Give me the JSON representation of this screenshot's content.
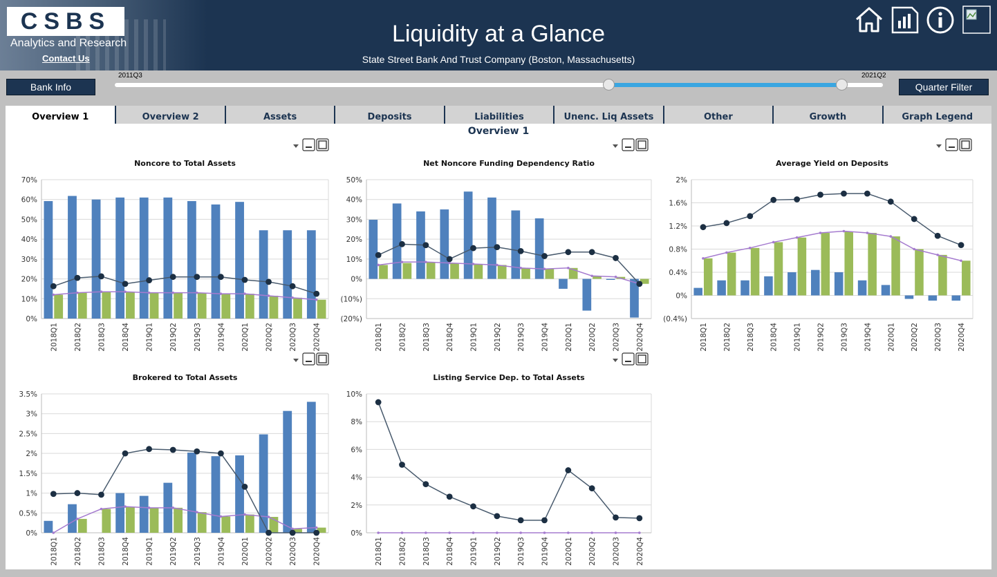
{
  "header": {
    "logo_text": "CSBS",
    "logo_sub": "Analytics and Research",
    "contact_link": "Contact Us",
    "title": "Liquidity at a Glance",
    "subtitle": "State Street Bank And Trust Company (Boston, Massachusetts)",
    "icons": [
      "home-icon",
      "report-icon",
      "info-icon",
      "broken-image-icon"
    ]
  },
  "controls": {
    "bank_info": "Bank Info",
    "quarter_filter": "Quarter Filter",
    "slider_min_label": "2011Q3",
    "slider_max_label": "2021Q2",
    "range_start_fraction": 0.643,
    "range_end_fraction": 0.946
  },
  "tabs": [
    "Overview 1",
    "Overview 2",
    "Assets",
    "Deposits",
    "Liabilities",
    "Unenc. Liq Assets",
    "Other",
    "Growth",
    "Graph Legend"
  ],
  "active_tab": 0,
  "panel_title": "Overview 1",
  "colors": {
    "bar_blue": "#4f81bd",
    "bar_green": "#9bbb59",
    "line_dark": "#1c2f43",
    "line_purple": "#a57bcf",
    "header_bg": "#1c3451",
    "slider_range": "#3aa6e1"
  },
  "chart_data": [
    {
      "type": "bar",
      "title": "Noncore to Total Assets",
      "categories": [
        "2018Q1",
        "2018Q2",
        "2018Q3",
        "2018Q4",
        "2019Q1",
        "2019Q2",
        "2019Q3",
        "2019Q4",
        "2020Q1",
        "2020Q2",
        "2020Q3",
        "2020Q4"
      ],
      "ylim": [
        0,
        70
      ],
      "ticks": [
        0,
        10,
        20,
        30,
        40,
        50,
        60,
        70
      ],
      "tick_labels": [
        "0%",
        "10%",
        "20%",
        "30%",
        "40%",
        "50%",
        "60%",
        "70%"
      ],
      "bars_blue": [
        59.2,
        61.8,
        60.0,
        61.0,
        61.0,
        61.0,
        59.2,
        57.5,
        58.8,
        44.5,
        44.5,
        44.5
      ],
      "bars_green": [
        12.0,
        13.0,
        13.5,
        13.5,
        13.0,
        13.0,
        13.0,
        12.5,
        12.5,
        11.5,
        10.5,
        9.5
      ],
      "line_dark": [
        16.3,
        20.5,
        21.3,
        17.5,
        19.3,
        21.0,
        21.0,
        21.0,
        19.5,
        18.5,
        16.3,
        12.5
      ],
      "line_purple": [
        12.0,
        13.0,
        13.5,
        13.5,
        13.0,
        13.0,
        13.0,
        12.5,
        12.5,
        11.5,
        10.5,
        9.5
      ]
    },
    {
      "type": "bar",
      "title": "Net Noncore Funding Dependency Ratio",
      "categories": [
        "2018Q1",
        "2018Q2",
        "2018Q3",
        "2018Q4",
        "2019Q1",
        "2019Q2",
        "2019Q3",
        "2019Q4",
        "2020Q1",
        "2020Q2",
        "2020Q3",
        "2020Q4"
      ],
      "ylim": [
        -20,
        50
      ],
      "ticks": [
        -20,
        -10,
        0,
        10,
        20,
        30,
        40,
        50
      ],
      "tick_labels": [
        "(20%)",
        "(10%)",
        "0%",
        "10%",
        "20%",
        "30%",
        "40%",
        "50%"
      ],
      "bars_blue": [
        29.8,
        38.0,
        34.0,
        35.0,
        44.0,
        41.0,
        34.5,
        30.5,
        -5.0,
        -16.0,
        -0.5,
        -19.5
      ],
      "bars_green": [
        7.0,
        8.0,
        8.5,
        8.0,
        7.5,
        7.0,
        5.5,
        5.0,
        5.5,
        1.5,
        1.0,
        -2.5
      ],
      "line_dark": [
        12.0,
        17.5,
        17.0,
        10.0,
        15.5,
        16.0,
        14.0,
        11.5,
        13.5,
        13.5,
        10.5,
        -2.5
      ],
      "line_purple": [
        7.0,
        8.5,
        8.5,
        8.0,
        7.5,
        7.0,
        5.5,
        5.0,
        5.5,
        1.5,
        1.0,
        -2.5
      ]
    },
    {
      "type": "bar",
      "title": "Average Yield on Deposits",
      "categories": [
        "2018Q1",
        "2018Q2",
        "2018Q3",
        "2018Q4",
        "2019Q1",
        "2019Q2",
        "2019Q3",
        "2019Q4",
        "2020Q1",
        "2020Q2",
        "2020Q3",
        "2020Q4"
      ],
      "ylim": [
        -0.4,
        2
      ],
      "ticks": [
        -0.4,
        0,
        0.4,
        0.8,
        1.2,
        1.6,
        2
      ],
      "tick_labels": [
        "(0.4%)",
        "0%",
        "0.4%",
        "0.8%",
        "1.2%",
        "1.6%",
        "2%"
      ],
      "bars_blue": [
        0.13,
        0.26,
        0.26,
        0.33,
        0.4,
        0.44,
        0.4,
        0.26,
        0.18,
        -0.06,
        -0.09,
        -0.09
      ],
      "bars_green": [
        0.64,
        0.74,
        0.82,
        0.92,
        1.0,
        1.08,
        1.1,
        1.08,
        1.02,
        0.8,
        0.7,
        0.6
      ],
      "line_dark": [
        1.18,
        1.25,
        1.37,
        1.65,
        1.66,
        1.74,
        1.76,
        1.76,
        1.62,
        1.32,
        1.03,
        0.87
      ],
      "line_purple": [
        0.64,
        0.74,
        0.82,
        0.92,
        1.0,
        1.08,
        1.11,
        1.08,
        1.02,
        0.8,
        0.7,
        0.6
      ]
    },
    {
      "type": "bar",
      "title": "Brokered to Total Assets",
      "categories": [
        "2018Q1",
        "2018Q2",
        "2018Q3",
        "2018Q4",
        "2019Q1",
        "2019Q2",
        "2019Q3",
        "2019Q4",
        "2020Q1",
        "2020Q2",
        "2020Q3",
        "2020Q4"
      ],
      "ylim": [
        0,
        3.5
      ],
      "ticks": [
        0,
        0.5,
        1,
        1.5,
        2,
        2.5,
        3,
        3.5
      ],
      "tick_labels": [
        "0%",
        "0.5%",
        "1%",
        "1.5%",
        "2%",
        "2.5%",
        "3%",
        "3.5%"
      ],
      "bars_blue": [
        0.3,
        0.72,
        0.0,
        1.0,
        0.93,
        1.26,
        2.02,
        1.93,
        1.95,
        2.48,
        3.07,
        3.3
      ],
      "bars_green": [
        0.0,
        0.35,
        0.6,
        0.66,
        0.63,
        0.63,
        0.52,
        0.41,
        0.46,
        0.4,
        0.1,
        0.13
      ],
      "line_dark": [
        0.98,
        1.0,
        0.96,
        2.0,
        2.11,
        2.09,
        2.05,
        2.0,
        1.16,
        0.0,
        0.0,
        0.0
      ],
      "line_purple": [
        0.0,
        0.35,
        0.6,
        0.66,
        0.63,
        0.63,
        0.52,
        0.41,
        0.46,
        0.4,
        0.1,
        0.13
      ]
    },
    {
      "type": "line",
      "title": "Listing Service Dep. to Total Assets",
      "categories": [
        "2018Q1",
        "2018Q2",
        "2018Q3",
        "2018Q4",
        "2019Q1",
        "2019Q2",
        "2019Q3",
        "2019Q4",
        "2020Q1",
        "2020Q2",
        "2020Q3",
        "2020Q4"
      ],
      "ylim": [
        0,
        10
      ],
      "ticks": [
        0,
        2,
        4,
        6,
        8,
        10
      ],
      "tick_labels": [
        "0%",
        "2%",
        "4%",
        "6%",
        "8%",
        "10%"
      ],
      "bars_blue": [],
      "bars_green": [],
      "line_dark": [
        9.4,
        4.9,
        3.5,
        2.6,
        1.9,
        1.2,
        0.9,
        0.9,
        4.5,
        3.2,
        1.1,
        1.05
      ],
      "line_purple": [
        0,
        0,
        0,
        0,
        0,
        0,
        0,
        0,
        0,
        0,
        0,
        0
      ]
    }
  ]
}
